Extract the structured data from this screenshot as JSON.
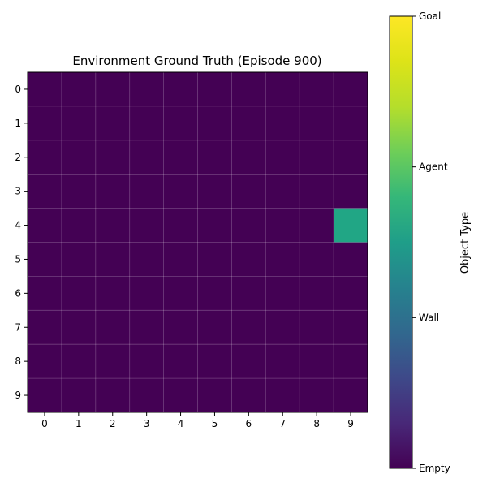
{
  "chart_data": {
    "type": "heatmap",
    "title": "Environment Ground Truth (Episode 900)",
    "x_ticks": [
      "0",
      "1",
      "2",
      "3",
      "4",
      "5",
      "6",
      "7",
      "8",
      "9"
    ],
    "y_ticks": [
      "0",
      "1",
      "2",
      "3",
      "4",
      "5",
      "6",
      "7",
      "8",
      "9"
    ],
    "grid": true,
    "values": [
      [
        0,
        0,
        0,
        0,
        0,
        0,
        0,
        0,
        0,
        0
      ],
      [
        0,
        0,
        0,
        0,
        0,
        0,
        0,
        0,
        0,
        0
      ],
      [
        0,
        0,
        0,
        0,
        0,
        0,
        0,
        0,
        0,
        0
      ],
      [
        0,
        0,
        0,
        0,
        0,
        0,
        0,
        0,
        0,
        0
      ],
      [
        0,
        0,
        0,
        0,
        0,
        0,
        0,
        0,
        0,
        2
      ],
      [
        0,
        0,
        0,
        0,
        0,
        0,
        0,
        0,
        0,
        0
      ],
      [
        0,
        0,
        0,
        0,
        0,
        0,
        0,
        0,
        0,
        0
      ],
      [
        0,
        0,
        0,
        0,
        0,
        0,
        0,
        0,
        0,
        0
      ],
      [
        0,
        0,
        0,
        0,
        0,
        0,
        0,
        0,
        0,
        0
      ],
      [
        0,
        0,
        0,
        0,
        0,
        0,
        0,
        0,
        0,
        0
      ]
    ],
    "colorbar": {
      "label": "Object Type",
      "range": [
        0,
        3
      ],
      "ticks": [
        {
          "value": 0,
          "label": "Empty"
        },
        {
          "value": 1,
          "label": "Wall"
        },
        {
          "value": 2,
          "label": "Agent"
        },
        {
          "value": 3,
          "label": "Goal"
        }
      ],
      "colormap": "viridis"
    }
  },
  "colors": {
    "empty": "#440154",
    "wall": "#31688e",
    "agent": "#21a685",
    "goal": "#fde725"
  }
}
